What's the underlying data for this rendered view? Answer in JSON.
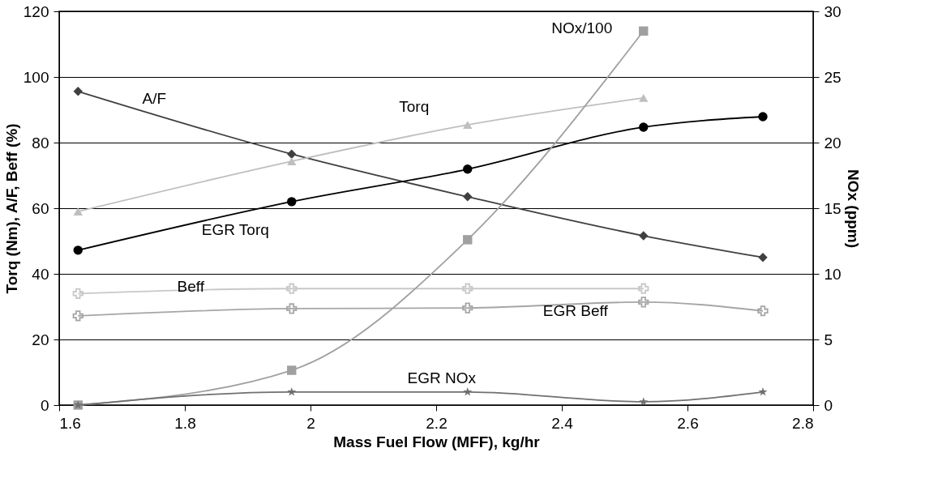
{
  "chart_data": {
    "type": "line",
    "xlabel": "Mass Fuel Flow (MFF), kg/hr",
    "ylabel": "Torq (Nm), A/F, Beff (%)",
    "y2label": "NOx (ppm)",
    "xlim": [
      1.6,
      2.8
    ],
    "xticks": [
      1.6,
      1.8,
      2,
      2.2,
      2.4,
      2.6,
      2.8
    ],
    "ylim": [
      0,
      120
    ],
    "yticks": [
      0,
      20,
      40,
      60,
      80,
      100,
      120
    ],
    "y2lim": [
      0,
      30
    ],
    "y2ticks": [
      0,
      5,
      10,
      15,
      20,
      25,
      30
    ],
    "grid": "y",
    "legend": false,
    "series": [
      {
        "name": "A/F",
        "color": "#404040",
        "marker": "diamond",
        "x": [
          1.63,
          1.97,
          2.25,
          2.53,
          2.72
        ],
        "values": [
          95.6,
          76.5,
          63.5,
          51.6,
          45
        ]
      },
      {
        "name": "Torq",
        "color": "#bfbfbf",
        "marker": "triangle",
        "x": [
          1.63,
          1.97,
          2.25,
          2.53
        ],
        "values": [
          59,
          74.3,
          85.4,
          93.6
        ]
      },
      {
        "name": "EGR Torq",
        "color": "#000000",
        "marker": "circle",
        "x": [
          1.63,
          1.97,
          2.25,
          2.53,
          2.72
        ],
        "values": [
          47.2,
          62,
          71.9,
          84.7,
          87.9
        ]
      },
      {
        "name": "NOx/100",
        "color": "#a0a0a0",
        "marker": "square",
        "axis": "y2",
        "x": [
          1.63,
          1.97,
          2.25,
          2.53
        ],
        "values": [
          0,
          2.65,
          12.6,
          28.5
        ]
      },
      {
        "name": "Beff",
        "color": "#c8c8c8",
        "marker": "cross",
        "x": [
          1.63,
          1.97,
          2.25,
          2.53
        ],
        "values": [
          34,
          35.5,
          35.5,
          35.5
        ]
      },
      {
        "name": "EGR Beff",
        "color": "#a6a6a6",
        "marker": "cross",
        "x": [
          1.63,
          1.97,
          2.25,
          2.53,
          2.72
        ],
        "values": [
          27.2,
          29.4,
          29.6,
          31.4,
          28.7
        ]
      },
      {
        "name": "EGR NOx",
        "color": "#707070",
        "marker": "star",
        "axis": "y2",
        "x": [
          1.63,
          1.97,
          2.25,
          2.53,
          2.72
        ],
        "values": [
          0,
          1,
          1,
          0.25,
          1
        ]
      }
    ]
  }
}
